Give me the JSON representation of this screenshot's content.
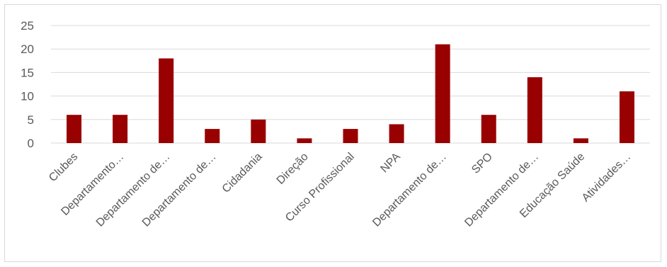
{
  "chart_data": {
    "type": "bar",
    "title": "",
    "xlabel": "",
    "ylabel": "",
    "categories": [
      "Clubes",
      "Departamento…",
      "Departamento de…",
      "Departamento de…",
      "Cidadania",
      "Direção",
      "Curso Profissional",
      "NPA",
      "Departamento de…",
      "SPO",
      "Departamento de…",
      "Educação Saúde",
      "Atividades…"
    ],
    "values": [
      6,
      6,
      18,
      3,
      5,
      1,
      3,
      4,
      21,
      6,
      14,
      1,
      11
    ],
    "ylim": [
      0,
      25
    ],
    "yticks": [
      0,
      5,
      10,
      15,
      20,
      25
    ],
    "grid": true,
    "legend": "none",
    "colors": {
      "bar": "#990000",
      "grid": "#d9d9d9",
      "text": "#595959"
    }
  }
}
